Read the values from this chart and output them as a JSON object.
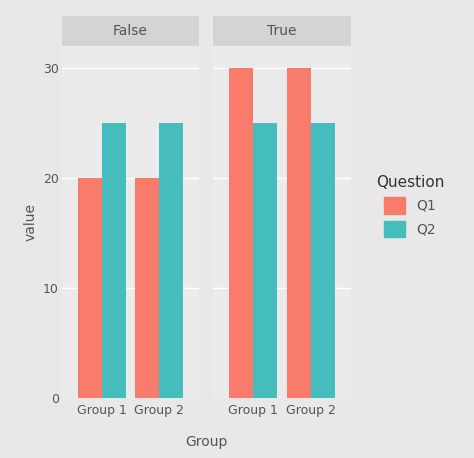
{
  "facets": [
    "False",
    "True"
  ],
  "groups": [
    "Group 1",
    "Group 2"
  ],
  "questions": [
    "Q1",
    "Q2"
  ],
  "values": {
    "False": {
      "Group 1": {
        "Q1": 20,
        "Q2": 25
      },
      "Group 2": {
        "Q1": 20,
        "Q2": 25
      }
    },
    "True": {
      "Group 1": {
        "Q1": 30,
        "Q2": 25
      },
      "Group 2": {
        "Q1": 30,
        "Q2": 25
      }
    }
  },
  "colors": {
    "Q1": "#F87B6B",
    "Q2": "#45BDBD"
  },
  "outer_bg": "#E8E8E8",
  "panel_bg": "#EBEBEB",
  "strip_bg": "#D4D4D4",
  "strip_text_color": "#555555",
  "grid_color": "#FFFFFF",
  "xlabel": "Group",
  "ylabel": "value",
  "legend_title": "Question",
  "ylim": [
    0,
    32
  ],
  "yticks": [
    0,
    10,
    20,
    30
  ],
  "bar_width": 0.42,
  "title_fontsize": 10,
  "axis_fontsize": 10,
  "tick_fontsize": 9,
  "legend_fontsize": 10
}
